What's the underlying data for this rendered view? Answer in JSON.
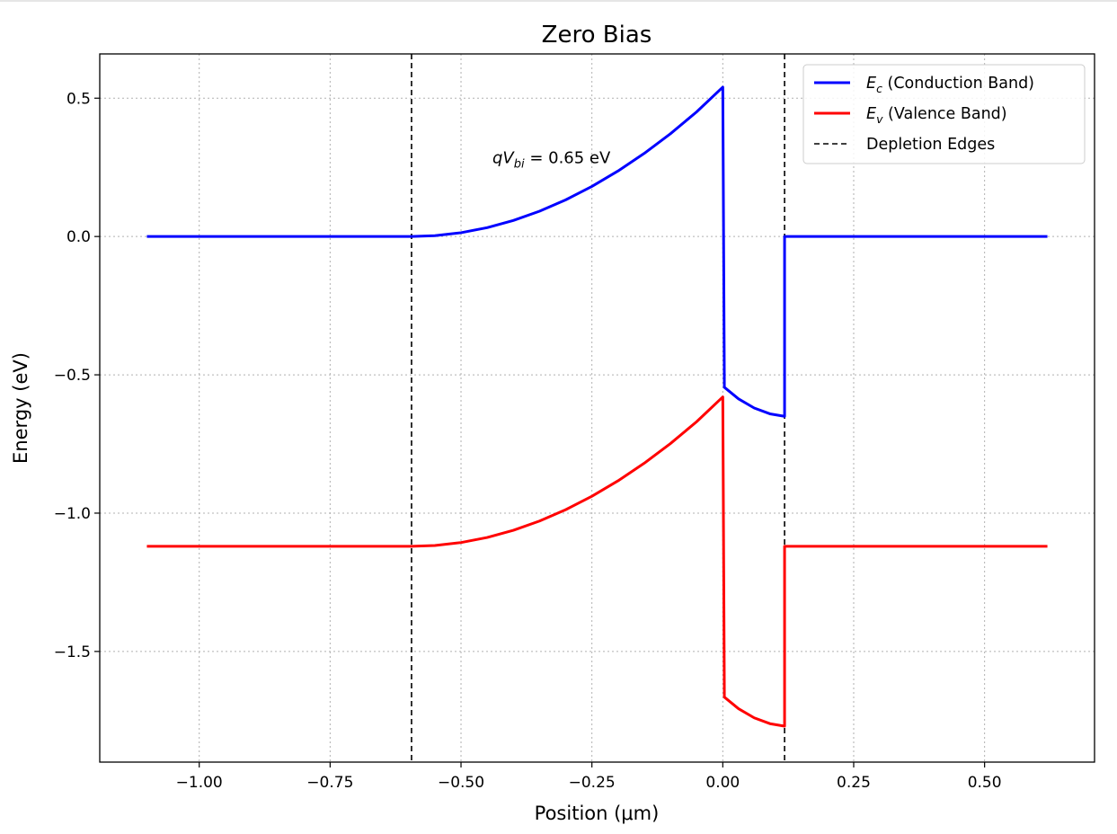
{
  "chart_data": {
    "type": "line",
    "title": "Zero Bias",
    "xlabel": "Position (μm)",
    "ylabel": "Energy (eV)",
    "xlim": [
      -1.19,
      0.71
    ],
    "ylim": [
      -1.9,
      0.66
    ],
    "xticks": [
      -1.0,
      -0.75,
      -0.5,
      -0.25,
      0.0,
      0.25,
      0.5
    ],
    "xtick_labels": [
      "−1.00",
      "−0.75",
      "−0.50",
      "−0.25",
      "0.00",
      "0.25",
      "0.50"
    ],
    "yticks": [
      0.5,
      0.0,
      -0.5,
      -1.0,
      -1.5
    ],
    "ytick_labels": [
      "0.5",
      "0.0",
      "−0.5",
      "−1.0",
      "−1.5"
    ],
    "grid": true,
    "legend_position": "upper right",
    "series": [
      {
        "name": "E_c (Conduction Band)",
        "legend_symbol": "E",
        "legend_subscript": "c",
        "legend_text": " (Conduction Band)",
        "color": "#0000ff",
        "points": [
          [
            -1.1,
            0.0
          ],
          [
            -0.5945,
            0.0
          ],
          [
            -0.55,
            0.003
          ],
          [
            -0.5,
            0.0137
          ],
          [
            -0.45,
            0.032
          ],
          [
            -0.4,
            0.058
          ],
          [
            -0.35,
            0.0915
          ],
          [
            -0.3,
            0.1325
          ],
          [
            -0.25,
            0.181
          ],
          [
            -0.2,
            0.237
          ],
          [
            -0.15,
            0.3005
          ],
          [
            -0.1,
            0.3715
          ],
          [
            -0.05,
            0.4505
          ],
          [
            0.0,
            0.54
          ],
          [
            0.003,
            -0.545
          ],
          [
            0.03,
            -0.587
          ],
          [
            0.06,
            -0.62
          ],
          [
            0.09,
            -0.641
          ],
          [
            0.118,
            -0.65
          ],
          [
            0.118,
            0.0
          ],
          [
            0.62,
            0.0
          ]
        ]
      },
      {
        "name": "E_v (Valence Band)",
        "legend_symbol": "E",
        "legend_subscript": "v",
        "legend_text": " (Valence Band)",
        "color": "#ff0000",
        "points": [
          [
            -1.1,
            -1.12
          ],
          [
            -0.5945,
            -1.12
          ],
          [
            -0.55,
            -1.117
          ],
          [
            -0.5,
            -1.1063
          ],
          [
            -0.45,
            -1.088
          ],
          [
            -0.4,
            -1.062
          ],
          [
            -0.35,
            -1.0285
          ],
          [
            -0.3,
            -0.9875
          ],
          [
            -0.25,
            -0.939
          ],
          [
            -0.2,
            -0.883
          ],
          [
            -0.15,
            -0.8195
          ],
          [
            -0.1,
            -0.7485
          ],
          [
            -0.05,
            -0.6695
          ],
          [
            0.0,
            -0.58
          ],
          [
            0.003,
            -1.665
          ],
          [
            0.03,
            -1.707
          ],
          [
            0.06,
            -1.74
          ],
          [
            0.09,
            -1.761
          ],
          [
            0.118,
            -1.77
          ],
          [
            0.118,
            -1.12
          ],
          [
            0.62,
            -1.12
          ]
        ]
      },
      {
        "name": "Depletion Edges",
        "legend_text": "Depletion Edges",
        "color": "#000000",
        "style": "dashed",
        "x_positions": [
          -0.5945,
          0.118
        ]
      }
    ],
    "annotation": {
      "symbol": "qV",
      "subscript": "bi",
      "text": " = 0.65 eV",
      "x": -0.44,
      "y": 0.285
    }
  }
}
